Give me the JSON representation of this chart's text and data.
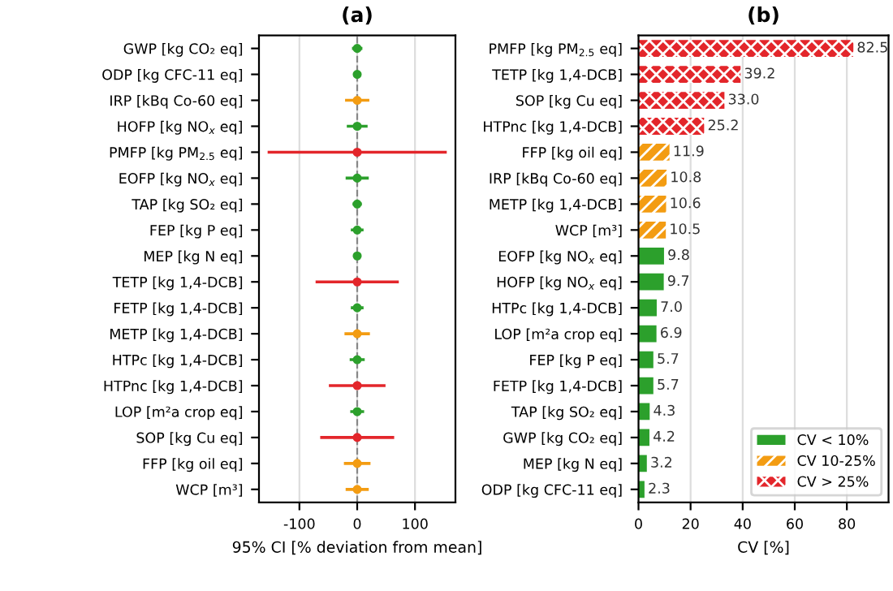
{
  "chart_data": [
    {
      "type": "scatter",
      "title": "(a)",
      "xlabel": "95% CI [% deviation from mean]",
      "orientation": "horizontal",
      "categories": [
        "GWP [kg CO₂ eq]",
        "ODP [kg CFC-11 eq]",
        "IRP [kBq Co-60 eq]",
        "HOFP [kg NO$_{x}$ eq]",
        "PMFP [kg PM$_{2.5}$ eq]",
        "EOFP [kg NO$_{x}$ eq]",
        "TAP [kg SO₂ eq]",
        "FEP [kg P eq]",
        "MEP [kg N eq]",
        "TETP [kg 1,4-DCB]",
        "FETP [kg 1,4-DCB]",
        "METP [kg 1,4-DCB]",
        "HTPc [kg 1,4-DCB]",
        "HTPnc [kg 1,4-DCB]",
        "LOP [m²a crop eq]",
        "SOP [kg Cu eq]",
        "FFP [kg oil eq]",
        "WCP [m³]"
      ],
      "values": [
        0,
        0,
        0,
        0,
        0,
        0,
        0,
        0,
        0,
        0,
        0,
        0,
        0,
        0,
        0,
        0,
        0,
        0
      ],
      "errors": [
        9,
        4,
        21,
        18,
        155,
        20,
        8,
        11,
        6,
        72,
        11,
        22,
        13,
        49,
        12,
        64,
        23,
        20
      ],
      "colors": [
        "#2ca02c",
        "#2ca02c",
        "#f39c12",
        "#2ca02c",
        "#e3262b",
        "#2ca02c",
        "#2ca02c",
        "#2ca02c",
        "#2ca02c",
        "#e3262b",
        "#2ca02c",
        "#f39c12",
        "#2ca02c",
        "#e3262b",
        "#2ca02c",
        "#e3262b",
        "#f39c12",
        "#f39c12"
      ],
      "marker": "circle",
      "xlim": [
        -170,
        170
      ],
      "xticks": [
        -100,
        0,
        100
      ],
      "grid": "x",
      "ref_lines": [
        {
          "axis": "x",
          "value": 0,
          "color": "#888888",
          "line_style": "dashed"
        }
      ]
    },
    {
      "type": "bar",
      "title": "(b)",
      "xlabel": "CV [%]",
      "orientation": "horizontal",
      "categories": [
        "PMFP [kg PM$_{2.5}$ eq]",
        "TETP [kg 1,4-DCB]",
        "SOP [kg Cu eq]",
        "HTPnc [kg 1,4-DCB]",
        "FFP [kg oil eq]",
        "IRP [kBq Co-60 eq]",
        "METP [kg 1,4-DCB]",
        "WCP [m³]",
        "EOFP [kg NO$_{x}$ eq]",
        "HOFP [kg NO$_{x}$ eq]",
        "HTPc [kg 1,4-DCB]",
        "LOP [m²a crop eq]",
        "FEP [kg P eq]",
        "FETP [kg 1,4-DCB]",
        "TAP [kg SO₂ eq]",
        "GWP [kg CO₂ eq]",
        "MEP [kg N eq]",
        "ODP [kg CFC-11 eq]"
      ],
      "series": [
        {
          "name": "CV < 10%",
          "color": "#2ca02c",
          "values": [
            null,
            null,
            null,
            null,
            null,
            null,
            null,
            null,
            9.8,
            9.7,
            7.0,
            6.9,
            5.7,
            5.7,
            4.3,
            4.2,
            3.2,
            2.3
          ],
          "value_labels": [
            null,
            null,
            null,
            null,
            null,
            null,
            null,
            null,
            "9.8",
            "9.7",
            "7.0",
            "6.9",
            "5.7",
            "5.7",
            "4.3",
            "4.2",
            "3.2",
            "2.3"
          ]
        },
        {
          "name": "CV 10-25%",
          "color": "#f39c12",
          "values": [
            null,
            null,
            null,
            null,
            11.9,
            10.8,
            10.6,
            10.5,
            null,
            null,
            null,
            null,
            null,
            null,
            null,
            null,
            null,
            null
          ],
          "value_labels": [
            null,
            null,
            null,
            null,
            "11.9",
            "10.8",
            "10.6",
            "10.5",
            null,
            null,
            null,
            null,
            null,
            null,
            null,
            null,
            null,
            null
          ]
        },
        {
          "name": "CV > 25%",
          "color": "#e3262b",
          "values": [
            82.5,
            39.2,
            33.0,
            25.2,
            null,
            null,
            null,
            null,
            null,
            null,
            null,
            null,
            null,
            null,
            null,
            null,
            null,
            null
          ],
          "value_labels": [
            "82.5",
            "39.2",
            "33.0",
            "25.2",
            null,
            null,
            null,
            null,
            null,
            null,
            null,
            null,
            null,
            null,
            null,
            null,
            null,
            null
          ]
        }
      ],
      "xlim": [
        0,
        96
      ],
      "xticks": [
        0,
        20,
        40,
        60,
        80
      ],
      "grid": "x",
      "legend": "bottom right"
    }
  ]
}
